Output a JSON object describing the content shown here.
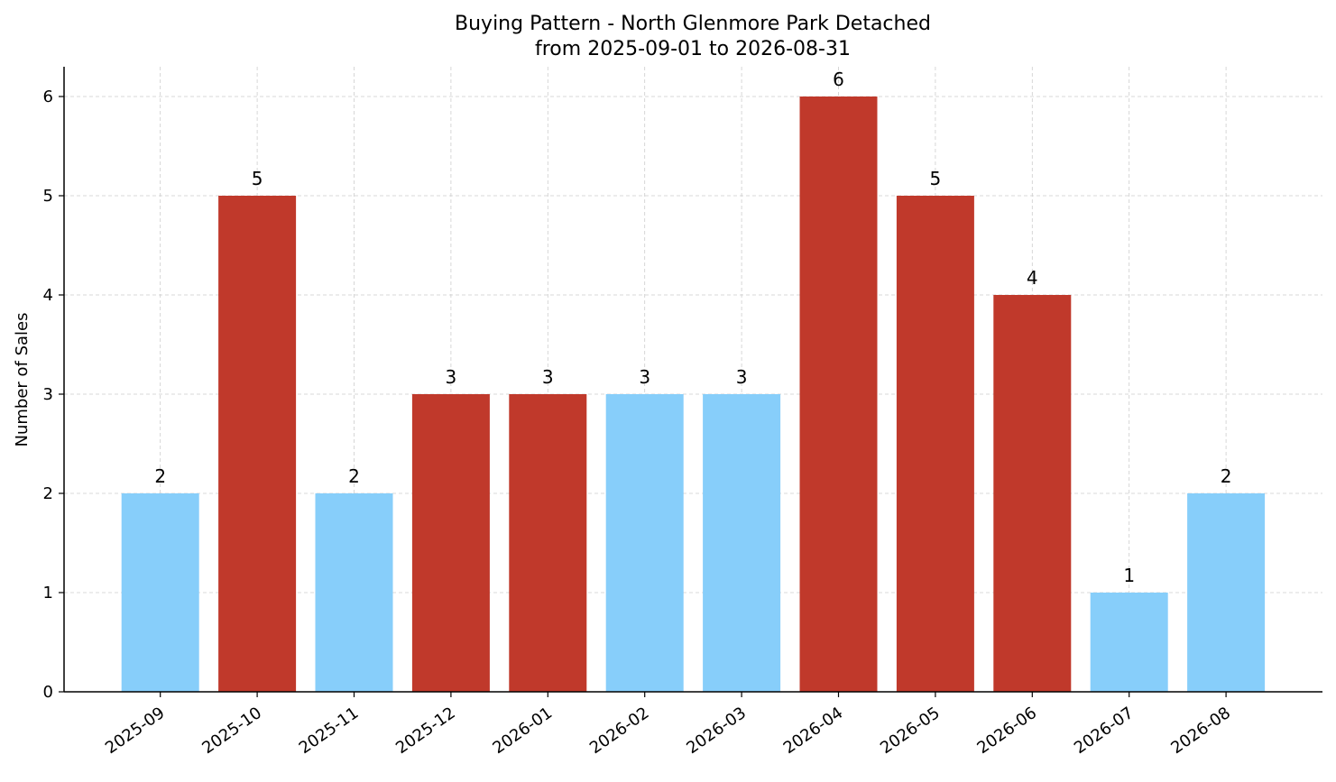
{
  "chart_data": {
    "type": "bar",
    "title": "Buying Pattern - North Glenmore Park Detached",
    "subtitle": "from 2025-09-01 to 2026-08-31",
    "xlabel": "",
    "ylabel": "Number of Sales",
    "categories": [
      "2025-09",
      "2025-10",
      "2025-11",
      "2025-12",
      "2026-01",
      "2026-02",
      "2026-03",
      "2026-04",
      "2026-05",
      "2026-06",
      "2026-07",
      "2026-08"
    ],
    "values": [
      2,
      5,
      2,
      3,
      3,
      3,
      3,
      6,
      5,
      4,
      1,
      2
    ],
    "bar_colors": [
      "#87CEFA",
      "#C0392B",
      "#87CEFA",
      "#C0392B",
      "#C0392B",
      "#87CEFA",
      "#87CEFA",
      "#C0392B",
      "#C0392B",
      "#C0392B",
      "#87CEFA",
      "#87CEFA"
    ],
    "data_labels": [
      "2",
      "5",
      "2",
      "3",
      "3",
      "3",
      "3",
      "6",
      "5",
      "4",
      "1",
      "2"
    ],
    "yticks": [
      0,
      1,
      2,
      3,
      4,
      5,
      6
    ],
    "ylim": [
      0,
      6.3
    ],
    "grid": true,
    "colors": {
      "light": "#87CEFA",
      "dark": "#C0392B",
      "grid": "#cccccc"
    }
  }
}
